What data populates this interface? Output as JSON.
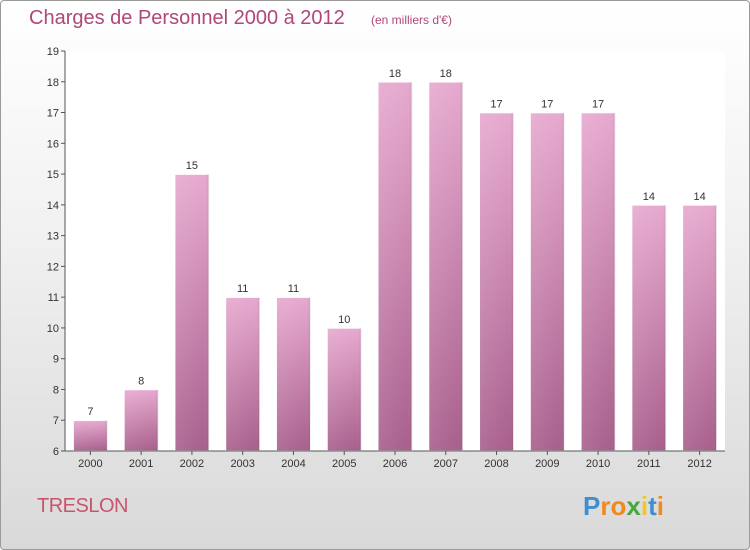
{
  "title": "Charges de Personnel 2000 à 2012",
  "subtitle": "(en milliers d'€)",
  "commune": "TRESLON",
  "logo": {
    "text": "Proxiti",
    "letters": [
      "P",
      "r",
      "o",
      "x",
      "i",
      "t",
      "i"
    ],
    "colors": [
      "#3f8fd0",
      "#f08a1c",
      "#f08a1c",
      "#46a83e",
      "#f2c81d",
      "#3f8fd0",
      "#f08a1c"
    ]
  },
  "colors": {
    "title": "#b0477a",
    "bar_top": "#e7a9cf",
    "bar_bottom": "#a85f8c",
    "axis": "#555555"
  },
  "chart_data": {
    "type": "bar",
    "categories": [
      "2000",
      "2001",
      "2002",
      "2003",
      "2004",
      "2005",
      "2006",
      "2007",
      "2008",
      "2009",
      "2010",
      "2011",
      "2012"
    ],
    "values": [
      7,
      8,
      15,
      11,
      11,
      10,
      18,
      18,
      17,
      17,
      17,
      14,
      14
    ],
    "title": "Charges de Personnel 2000 à 2012",
    "subtitle": "(en milliers d'€)",
    "xlabel": "",
    "ylabel": "",
    "ylim": [
      6,
      19
    ],
    "yticks": [
      6,
      7,
      8,
      9,
      10,
      11,
      12,
      13,
      14,
      15,
      16,
      17,
      18,
      19
    ],
    "grid": false,
    "data_labels": true
  }
}
